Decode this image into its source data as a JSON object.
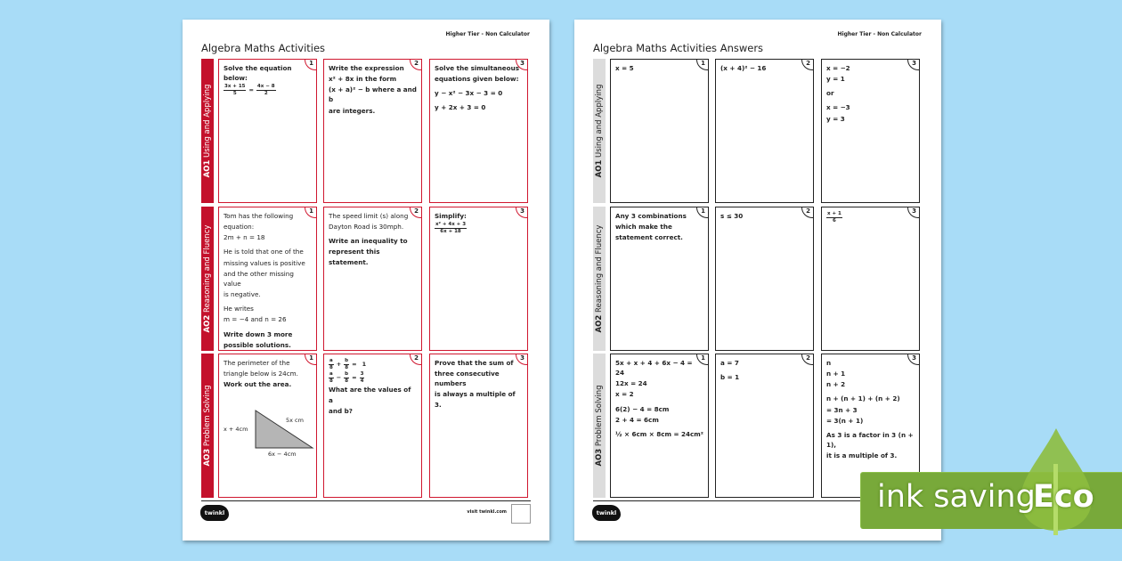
{
  "worksheet": {
    "title": "Algebra Maths Activities",
    "tier": "Higher Tier - Non Calculator",
    "accent": "#d0172f",
    "rows": [
      {
        "code": "AO1",
        "label": "Using and Applying"
      },
      {
        "code": "AO2",
        "label": "Reasoning and Fluency"
      },
      {
        "code": "AO3",
        "label": "Problem Solving"
      }
    ],
    "cells": [
      {
        "n": "1",
        "lines": [
          {
            "t": "Solve the equation below:",
            "b": true
          },
          {
            "frac": [
              [
                "3x + 15",
                "5"
              ],
              "=",
              [
                "4x − 8",
                "2"
              ]
            ]
          }
        ]
      },
      {
        "n": "2",
        "lines": [
          {
            "t": "Write the expression",
            "b": true
          },
          {
            "t": "x² + 8x in the form",
            "b": true
          },
          {
            "t": "(x + a)² − b where a and b",
            "b": true
          },
          {
            "t": "are integers.",
            "b": true
          }
        ]
      },
      {
        "n": "3",
        "lines": [
          {
            "t": "Solve the simultaneous",
            "b": true
          },
          {
            "t": "equations given below:",
            "b": true
          },
          {
            "t": "y − x² − 3x − 3 = 0",
            "b": true,
            "g": true
          },
          {
            "t": "y + 2x + 3 = 0",
            "b": true,
            "g": true
          }
        ]
      },
      {
        "n": "1",
        "lines": [
          {
            "t": "Tom has the following"
          },
          {
            "t": "equation:"
          },
          {
            "t": "2m + n = 18"
          },
          {
            "t": "He is told that one of the",
            "g": true
          },
          {
            "t": "missing values is positive"
          },
          {
            "t": "and the other missing value"
          },
          {
            "t": "is negative."
          },
          {
            "t": "He writes",
            "g": true
          },
          {
            "t": "m = −4 and n = 26"
          },
          {
            "t": "Write down 3 more",
            "b": true,
            "g": true
          },
          {
            "t": "possible solutions.",
            "b": true
          }
        ]
      },
      {
        "n": "2",
        "lines": [
          {
            "t": "The speed limit (s) along"
          },
          {
            "t": "Dayton Road is 30mph."
          },
          {
            "t": "Write an inequality to",
            "b": true,
            "g": true
          },
          {
            "t": "represent this statement.",
            "b": true
          }
        ]
      },
      {
        "n": "3",
        "lines": [
          {
            "t": "Simplify:",
            "b": true
          },
          {
            "frac": [
              [
                "x² + 4x + 3",
                "6x + 18"
              ]
            ]
          }
        ]
      },
      {
        "n": "1",
        "lines": [
          {
            "t": "The perimeter of the"
          },
          {
            "t": "triangle below is 24cm."
          },
          {
            "t": "Work out the area.",
            "b": true
          }
        ],
        "triangle": {
          "left": "x + 4cm",
          "hyp": "5x cm",
          "base": "6x − 4cm"
        }
      },
      {
        "n": "2",
        "lines": [
          {
            "frac": [
              [
                "a",
                "8"
              ],
              "+",
              [
                "b",
                "8"
              ],
              "=",
              "1"
            ]
          },
          {
            "frac": [
              [
                "a",
                "8"
              ],
              "−",
              [
                "b",
                "8"
              ],
              "=",
              [
                "3",
                "4"
              ]
            ]
          },
          {
            "t": "What are the values of a",
            "b": true
          },
          {
            "t": "and b?",
            "b": true
          }
        ]
      },
      {
        "n": "3",
        "lines": [
          {
            "t": "Prove that the sum of",
            "b": true
          },
          {
            "t": "three consecutive numbers",
            "b": true
          },
          {
            "t": "is always a multiple of 3.",
            "b": true
          }
        ]
      }
    ],
    "logo": "twinkl",
    "visit": "visit twinkl.com"
  },
  "answers": {
    "title": "Algebra Maths Activities Answers",
    "tier": "Higher Tier - Non Calculator",
    "rows": [
      {
        "code": "AO1",
        "label": "Using and Applying"
      },
      {
        "code": "AO2",
        "label": "Reasoning and Fluency"
      },
      {
        "code": "AO3",
        "label": "Problem Solving"
      }
    ],
    "cells": [
      {
        "n": "1",
        "lines": [
          {
            "t": "x = 5",
            "b": true
          }
        ]
      },
      {
        "n": "2",
        "lines": [
          {
            "t": "(x + 4)² − 16",
            "b": true
          }
        ]
      },
      {
        "n": "3",
        "lines": [
          {
            "t": "x = −2",
            "b": true
          },
          {
            "t": "y = 1",
            "b": true
          },
          {
            "t": "or",
            "b": true,
            "g": true
          },
          {
            "t": "x = −3",
            "b": true,
            "g": true
          },
          {
            "t": "y = 3",
            "b": true
          }
        ]
      },
      {
        "n": "1",
        "lines": [
          {
            "t": "Any 3 combinations",
            "b": true
          },
          {
            "t": "which make the",
            "b": true
          },
          {
            "t": "statement correct.",
            "b": true
          }
        ]
      },
      {
        "n": "2",
        "lines": [
          {
            "t": "s ≤ 30",
            "b": true
          }
        ]
      },
      {
        "n": "3",
        "lines": [
          {
            "frac": [
              [
                "x + 1",
                "6"
              ]
            ]
          }
        ]
      },
      {
        "n": "1",
        "lines": [
          {
            "t": "5x + x + 4 + 6x − 4 = 24",
            "b": true
          },
          {
            "t": "12x = 24",
            "b": true
          },
          {
            "t": "x = 2",
            "b": true
          },
          {
            "t": "6(2) − 4 = 8cm",
            "b": true,
            "g": true
          },
          {
            "t": "2 + 4 = 6cm",
            "b": true
          },
          {
            "t": "½ × 6cm × 8cm = 24cm²",
            "b": true,
            "g": true
          }
        ]
      },
      {
        "n": "2",
        "lines": [
          {
            "t": "a = 7",
            "b": true
          },
          {
            "t": "b = 1",
            "b": true,
            "g": true
          }
        ]
      },
      {
        "n": "3",
        "lines": [
          {
            "t": "n",
            "b": true
          },
          {
            "t": "n + 1",
            "b": true
          },
          {
            "t": "n + 2",
            "b": true
          },
          {
            "t": "n + (n + 1) + (n + 2)",
            "b": true,
            "g": true
          },
          {
            "t": "= 3n + 3",
            "b": true
          },
          {
            "t": "= 3(n + 1)",
            "b": true
          },
          {
            "t": "As 3 is a factor in 3 (n + 1),",
            "b": true,
            "g": true
          },
          {
            "t": "it is a multiple of 3.",
            "b": true
          }
        ]
      }
    ],
    "logo": "twinkl"
  },
  "eco_badge": {
    "text": "ink saving",
    "word": "Eco",
    "color": "#78a93a"
  }
}
